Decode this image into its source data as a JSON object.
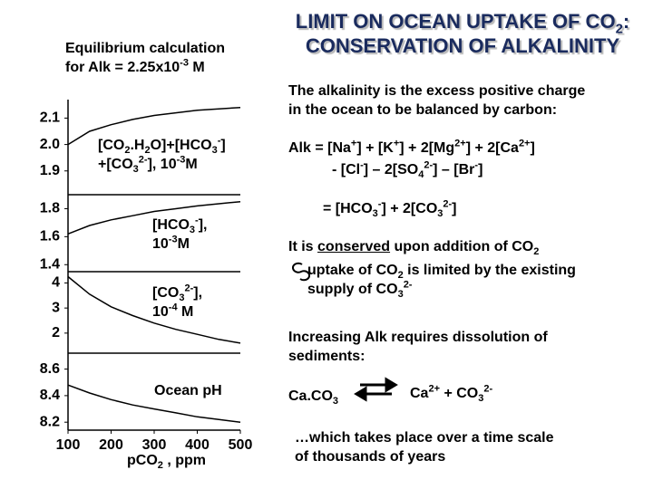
{
  "title": [
    [
      {
        "t": "LIMIT ON OCEAN UPTAKE OF CO"
      },
      {
        "sub": "2"
      },
      {
        "t": ":"
      }
    ],
    [
      {
        "t": "CONSERVATION OF ALKALINITY"
      }
    ]
  ],
  "left_heading": [
    [
      {
        "t": "Equilibrium calculation"
      }
    ],
    [
      {
        "t": "for Alk = 2.25x10"
      },
      {
        "sup": "-3"
      },
      {
        "t": " M"
      }
    ]
  ],
  "alkalinity_definition": [
    [
      {
        "t": "The alkalinity is the excess positive charge"
      }
    ],
    [
      {
        "t": "in the ocean to be balanced by carbon:"
      }
    ]
  ],
  "alkalinity_equation_1": [
    [
      {
        "t": "Alk = [Na"
      },
      {
        "sup": "+"
      },
      {
        "t": "] + [K"
      },
      {
        "sup": "+"
      },
      {
        "t": "] + 2[Mg"
      },
      {
        "sup": "2+"
      },
      {
        "t": "] + 2[Ca"
      },
      {
        "sup": "2+"
      },
      {
        "t": "]"
      }
    ]
  ],
  "alkalinity_equation_2": [
    [
      {
        "t": "- [Cl"
      },
      {
        "sup": "-"
      },
      {
        "t": "] – 2[SO"
      },
      {
        "sub": "4"
      },
      {
        "sup": "2-"
      },
      {
        "t": "] – [Br"
      },
      {
        "sup": "-"
      },
      {
        "t": "]"
      }
    ]
  ],
  "alkalinity_equation_3": [
    [
      {
        "t": "= [HCO"
      },
      {
        "sub": "3"
      },
      {
        "sup": "-"
      },
      {
        "t": "] + 2[CO"
      },
      {
        "sub": "3"
      },
      {
        "sup": "2-"
      },
      {
        "t": "]"
      }
    ]
  ],
  "conservation_note": [
    [
      {
        "t": "It is "
      },
      {
        "u": "conserved"
      },
      {
        "t": " upon addition of CO"
      },
      {
        "sub": "2"
      }
    ]
  ],
  "uptake_note": [
    [
      {
        "t": "uptake of CO"
      },
      {
        "sub": "2"
      },
      {
        "t": " is limited by the existing"
      }
    ],
    [
      {
        "t": "supply of CO"
      },
      {
        "sub": "3"
      },
      {
        "sup": "2-"
      }
    ]
  ],
  "dissolution_note": [
    [
      {
        "t": "Increasing Alk requires dissolution of"
      }
    ],
    [
      {
        "t": "sediments:"
      }
    ]
  ],
  "reaction_left": [
    [
      {
        "t": "Ca.CO"
      },
      {
        "sub": "3"
      }
    ]
  ],
  "reaction_right": [
    [
      {
        "t": "Ca"
      },
      {
        "sup": "2+"
      },
      {
        "t": " + CO"
      },
      {
        "sub": "3"
      },
      {
        "sup": "2-"
      }
    ]
  ],
  "timescale_note": [
    [
      {
        "t": "…which takes place over a time scale"
      }
    ],
    [
      {
        "t": "of thousands of years"
      }
    ]
  ],
  "chart_data": [
    {
      "type": "line",
      "annotation": [
        [
          {
            "t": "[CO"
          },
          {
            "sub": "2"
          },
          {
            "t": ".H"
          },
          {
            "sub": "2"
          },
          {
            "t": "O]+[HCO"
          },
          {
            "sub": "3"
          },
          {
            "sup": "-"
          },
          {
            "t": "]"
          }
        ],
        [
          {
            "t": "+[CO"
          },
          {
            "sub": "3"
          },
          {
            "sup": "2-"
          },
          {
            "t": "], 10"
          },
          {
            "sup": "-3"
          },
          {
            "t": "M"
          }
        ]
      ],
      "x": [
        100,
        150,
        200,
        250,
        300,
        350,
        400,
        450,
        500
      ],
      "series": [
        {
          "color": "#000000",
          "values": [
            2.0,
            2.05,
            2.075,
            2.095,
            2.11,
            2.12,
            2.13,
            2.135,
            2.14
          ]
        }
      ],
      "xlim": [
        100,
        500
      ],
      "ylim": [
        1.81,
        2.17
      ],
      "yticks": [
        1.9,
        {
          "value": 2,
          "label": "2.0"
        },
        2.1
      ]
    },
    {
      "type": "line",
      "annotation": [
        [
          {
            "t": "[HCO"
          },
          {
            "sub": "3"
          },
          {
            "sup": "-"
          },
          {
            "t": "],"
          }
        ],
        [
          {
            "t": "10"
          },
          {
            "sup": "-3"
          },
          {
            "t": "M"
          }
        ]
      ],
      "x": [
        100,
        150,
        200,
        250,
        300,
        350,
        400,
        450,
        500
      ],
      "series": [
        {
          "color": "#000000",
          "values": [
            1.62,
            1.68,
            1.72,
            1.75,
            1.78,
            1.8,
            1.82,
            1.835,
            1.85
          ]
        }
      ],
      "xlim": [
        100,
        500
      ],
      "ylim": [
        1.35,
        1.9
      ],
      "yticks": [
        1.4,
        1.6,
        1.8
      ]
    },
    {
      "type": "line",
      "annotation": [
        [
          {
            "t": "[CO"
          },
          {
            "sub": "3"
          },
          {
            "sup": "2-"
          },
          {
            "t": "],"
          }
        ],
        [
          {
            "t": "10"
          },
          {
            "sup": "-4"
          },
          {
            "t": " M"
          }
        ]
      ],
      "x": [
        100,
        150,
        200,
        250,
        300,
        350,
        400,
        450,
        500
      ],
      "series": [
        {
          "color": "#000000",
          "values": [
            4.25,
            3.55,
            3.05,
            2.7,
            2.4,
            2.15,
            1.95,
            1.75,
            1.6
          ]
        }
      ],
      "xlim": [
        100,
        500
      ],
      "ylim": [
        1.2,
        4.45
      ],
      "yticks": [
        2,
        3,
        4
      ]
    },
    {
      "type": "line",
      "annotation": [
        [
          {
            "t": "Ocean pH"
          }
        ]
      ],
      "x": [
        100,
        150,
        200,
        250,
        300,
        350,
        400,
        450,
        500
      ],
      "series": [
        {
          "color": "#000000",
          "values": [
            8.48,
            8.42,
            8.37,
            8.33,
            8.3,
            8.27,
            8.24,
            8.22,
            8.2
          ]
        }
      ],
      "xlim": [
        100,
        500
      ],
      "ylim": [
        8.14,
        8.72
      ],
      "yticks": [
        8.2,
        8.4,
        8.6
      ],
      "xticks": [
        100,
        200,
        300,
        400,
        500
      ],
      "xlabel": [
        [
          {
            "t": "pCO"
          },
          {
            "sub": "2"
          },
          {
            "t": " , ppm"
          }
        ]
      ]
    }
  ]
}
